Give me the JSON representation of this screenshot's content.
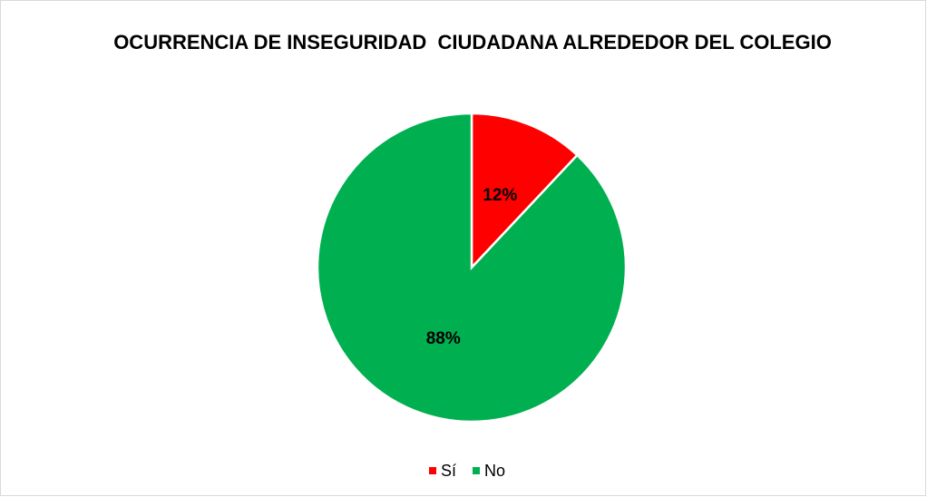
{
  "chart_data": {
    "type": "pie",
    "title": "OCURRENCIA DE INSEGURIDAD  CIUDADANA ALREDEDOR DEL COLEGIO",
    "categories": [
      "Sí",
      "No"
    ],
    "values": [
      12,
      88
    ],
    "value_labels": [
      "12%",
      "88%"
    ],
    "colors": [
      "#ff0000",
      "#00b050"
    ],
    "legend": "bottom"
  }
}
